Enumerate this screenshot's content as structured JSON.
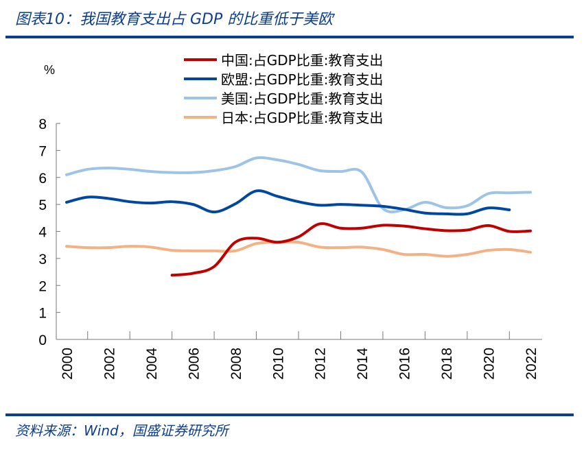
{
  "title": "图表10：我国教育支出占 GDP 的比重低于美欧",
  "source": "资料来源：Wind，国盛证券研究所",
  "chart_data": {
    "type": "line",
    "title": "图表10：我国教育支出占 GDP 的比重低于美欧",
    "ylabel": "%",
    "xlabel": "",
    "ylim": [
      0,
      8
    ],
    "yticks": [
      "0",
      "1",
      "2",
      "3",
      "4",
      "5",
      "6",
      "7",
      "8"
    ],
    "x": [
      2000,
      2001,
      2002,
      2003,
      2004,
      2005,
      2006,
      2007,
      2008,
      2009,
      2010,
      2011,
      2012,
      2013,
      2014,
      2015,
      2016,
      2017,
      2018,
      2019,
      2020,
      2021,
      2022
    ],
    "xticks": [
      "2000",
      "2002",
      "2004",
      "2006",
      "2008",
      "2010",
      "2012",
      "2014",
      "2016",
      "2018",
      "2020",
      "2022"
    ],
    "grid": false,
    "legend_placement": "top-center",
    "series": [
      {
        "name": "中国:占GDP比重:教育支出",
        "color": "#c00000",
        "values": [
          null,
          null,
          null,
          null,
          null,
          2.38,
          2.45,
          2.7,
          3.6,
          3.75,
          3.6,
          3.8,
          4.28,
          4.12,
          4.12,
          4.23,
          4.2,
          4.1,
          4.03,
          4.05,
          4.22,
          4.0,
          4.02
        ]
      },
      {
        "name": "欧盟:占GDP比重:教育支出",
        "color": "#0047a0",
        "values": [
          5.08,
          5.27,
          5.22,
          5.1,
          5.05,
          5.1,
          5.0,
          4.72,
          5.02,
          5.5,
          5.3,
          5.1,
          4.97,
          5.0,
          4.97,
          4.93,
          4.82,
          4.68,
          4.65,
          4.65,
          4.87,
          4.8,
          null
        ]
      },
      {
        "name": "美国:占GDP比重:教育支出",
        "color": "#9dc3e6",
        "values": [
          6.1,
          6.3,
          6.35,
          6.3,
          6.22,
          6.18,
          6.18,
          6.25,
          6.4,
          6.72,
          6.65,
          6.48,
          6.25,
          6.22,
          6.2,
          4.85,
          4.8,
          5.08,
          4.88,
          4.95,
          5.4,
          5.43,
          5.45
        ]
      },
      {
        "name": "日本:占GDP比重:教育支出",
        "color": "#f4b183",
        "values": [
          3.45,
          3.4,
          3.4,
          3.45,
          3.42,
          3.3,
          3.28,
          3.28,
          3.28,
          3.55,
          3.6,
          3.6,
          3.42,
          3.4,
          3.42,
          3.33,
          3.15,
          3.15,
          3.08,
          3.15,
          3.3,
          3.33,
          3.23
        ]
      }
    ]
  }
}
